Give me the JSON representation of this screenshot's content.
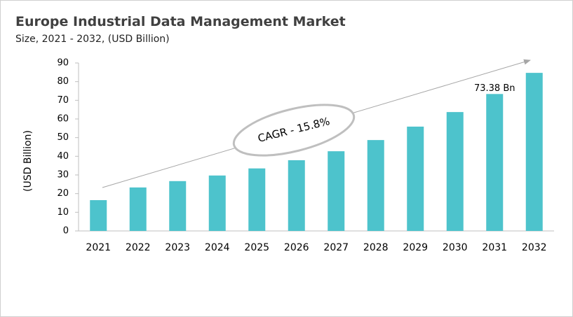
{
  "chart_data": {
    "type": "bar",
    "title": "Europe Industrial Data Management Market",
    "subtitle": "Size, 2021 - 2032, (USD Billion)",
    "y_label": "(USD Billion)",
    "categories": [
      "2021",
      "2022",
      "2023",
      "2024",
      "2025",
      "2026",
      "2027",
      "2028",
      "2029",
      "2030",
      "2031",
      "2032"
    ],
    "values": [
      16.5,
      23.3,
      26.7,
      29.7,
      33.5,
      37.9,
      42.7,
      48.7,
      55.9,
      63.7,
      73.38,
      84.7
    ],
    "value_labels": [
      null,
      null,
      null,
      null,
      null,
      null,
      null,
      null,
      null,
      null,
      "73.38 Bn",
      null
    ],
    "color": "#4dc3cc",
    "ylim": [
      0,
      90
    ],
    "yticks": [
      0,
      10,
      20,
      30,
      40,
      50,
      60,
      70,
      80,
      90
    ],
    "grid": false,
    "annotation": "CAGR - 15.8%"
  }
}
